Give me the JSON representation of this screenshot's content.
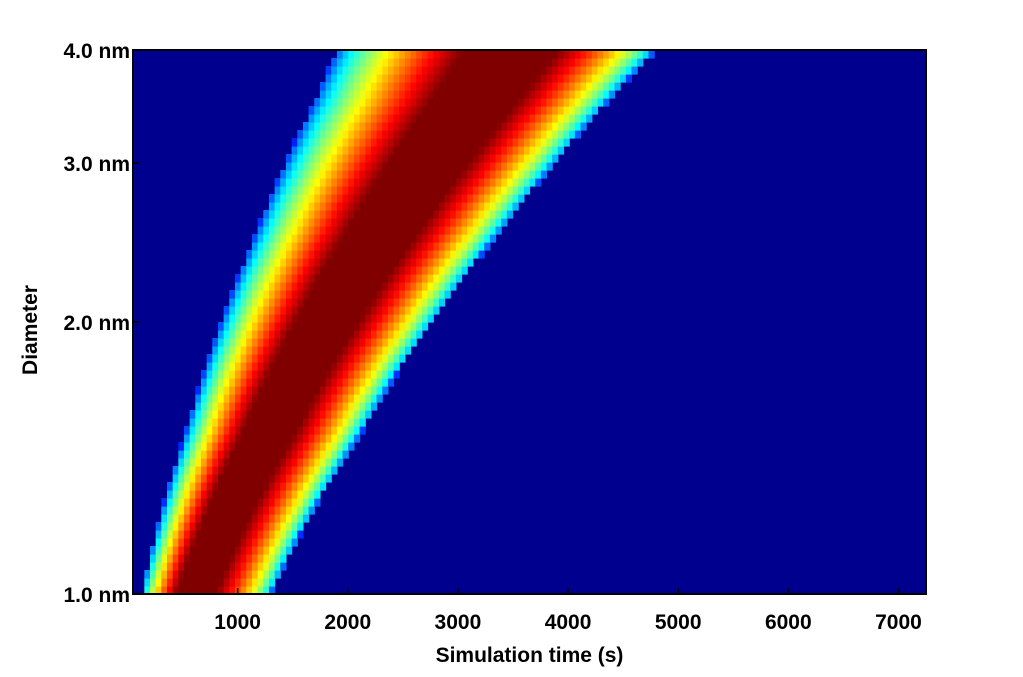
{
  "chart_data": {
    "type": "heatmap",
    "title": "",
    "xlabel": "Simulation time (s)",
    "ylabel": "Diameter",
    "x_ticks": [
      1000,
      2000,
      3000,
      4000,
      5000,
      6000,
      7000
    ],
    "x_tick_labels": [
      "1000",
      "2000",
      "3000",
      "4000",
      "5000",
      "6000",
      "7000"
    ],
    "y_ticks": [
      1.0,
      2.0,
      3.0,
      4.0
    ],
    "y_tick_labels": [
      "1.0 nm",
      "2.0 nm",
      "3.0 nm",
      "4.0 nm"
    ],
    "xlim": [
      50,
      7250
    ],
    "ylim": [
      1.0,
      4.0
    ],
    "y_scale": "log",
    "colormap": "jet",
    "background_color": "#00008f",
    "grid": false,
    "legend": "none",
    "band_edges": {
      "diameter_nm": [
        1.0,
        1.5,
        2.0,
        2.5,
        3.0,
        3.5,
        4.0
      ],
      "leading_edge_time_s": [
        120,
        520,
        850,
        1160,
        1430,
        1690,
        1900
      ],
      "trailing_edge_time_s": [
        1300,
        2110,
        2770,
        3360,
        3880,
        4350,
        4800
      ],
      "peak_time_s": [
        560,
        1230,
        1780,
        2280,
        2730,
        3150,
        3500
      ]
    }
  }
}
